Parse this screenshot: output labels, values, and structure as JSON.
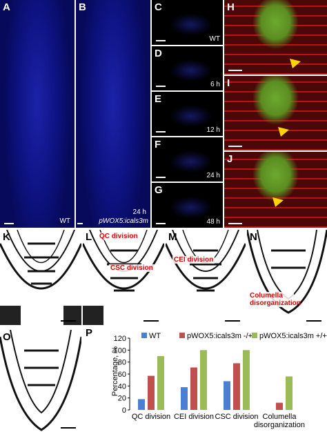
{
  "panels": [
    {
      "letter": "A",
      "labels": [
        "WT"
      ]
    },
    {
      "letter": "B",
      "labels": [
        "24 h",
        "pWOX5:icals3m"
      ]
    },
    {
      "letter": "C",
      "labels": [
        "WT"
      ]
    },
    {
      "letter": "D",
      "labels": [
        "6 h"
      ]
    },
    {
      "letter": "E",
      "labels": [
        "12 h"
      ]
    },
    {
      "letter": "F",
      "labels": [
        "24 h"
      ]
    },
    {
      "letter": "G",
      "labels": [
        "48 h"
      ]
    },
    {
      "letter": "H"
    },
    {
      "letter": "I"
    },
    {
      "letter": "J"
    },
    {
      "letter": "K"
    },
    {
      "letter": "L",
      "labels": [
        "QC division",
        "CSC division"
      ]
    },
    {
      "letter": "M",
      "labels": [
        "CEI division"
      ]
    },
    {
      "letter": "N",
      "labels": [
        "Columella disorganization"
      ]
    },
    {
      "letter": "O"
    },
    {
      "letter": "P"
    }
  ],
  "chart_data": {
    "type": "bar",
    "ylabel": "Percentage, %",
    "categories": [
      "QC division",
      "CEI division",
      "CSC division",
      "Columella disorganization"
    ],
    "series": [
      {
        "name": "WT",
        "color": "#4a7fd4",
        "values": [
          18,
          38,
          48,
          0
        ]
      },
      {
        "name": "pWOX5:icals3m -/+",
        "color": "#c0504d",
        "values": [
          57,
          71,
          78,
          12
        ]
      },
      {
        "name": "pWOX5:icals3m +/+",
        "color": "#9bbb59",
        "values": [
          90,
          100,
          100,
          56
        ]
      }
    ],
    "ylim": [
      0,
      120
    ],
    "yticks": [
      0,
      20,
      40,
      60,
      80,
      100,
      120
    ],
    "legend": "top"
  }
}
